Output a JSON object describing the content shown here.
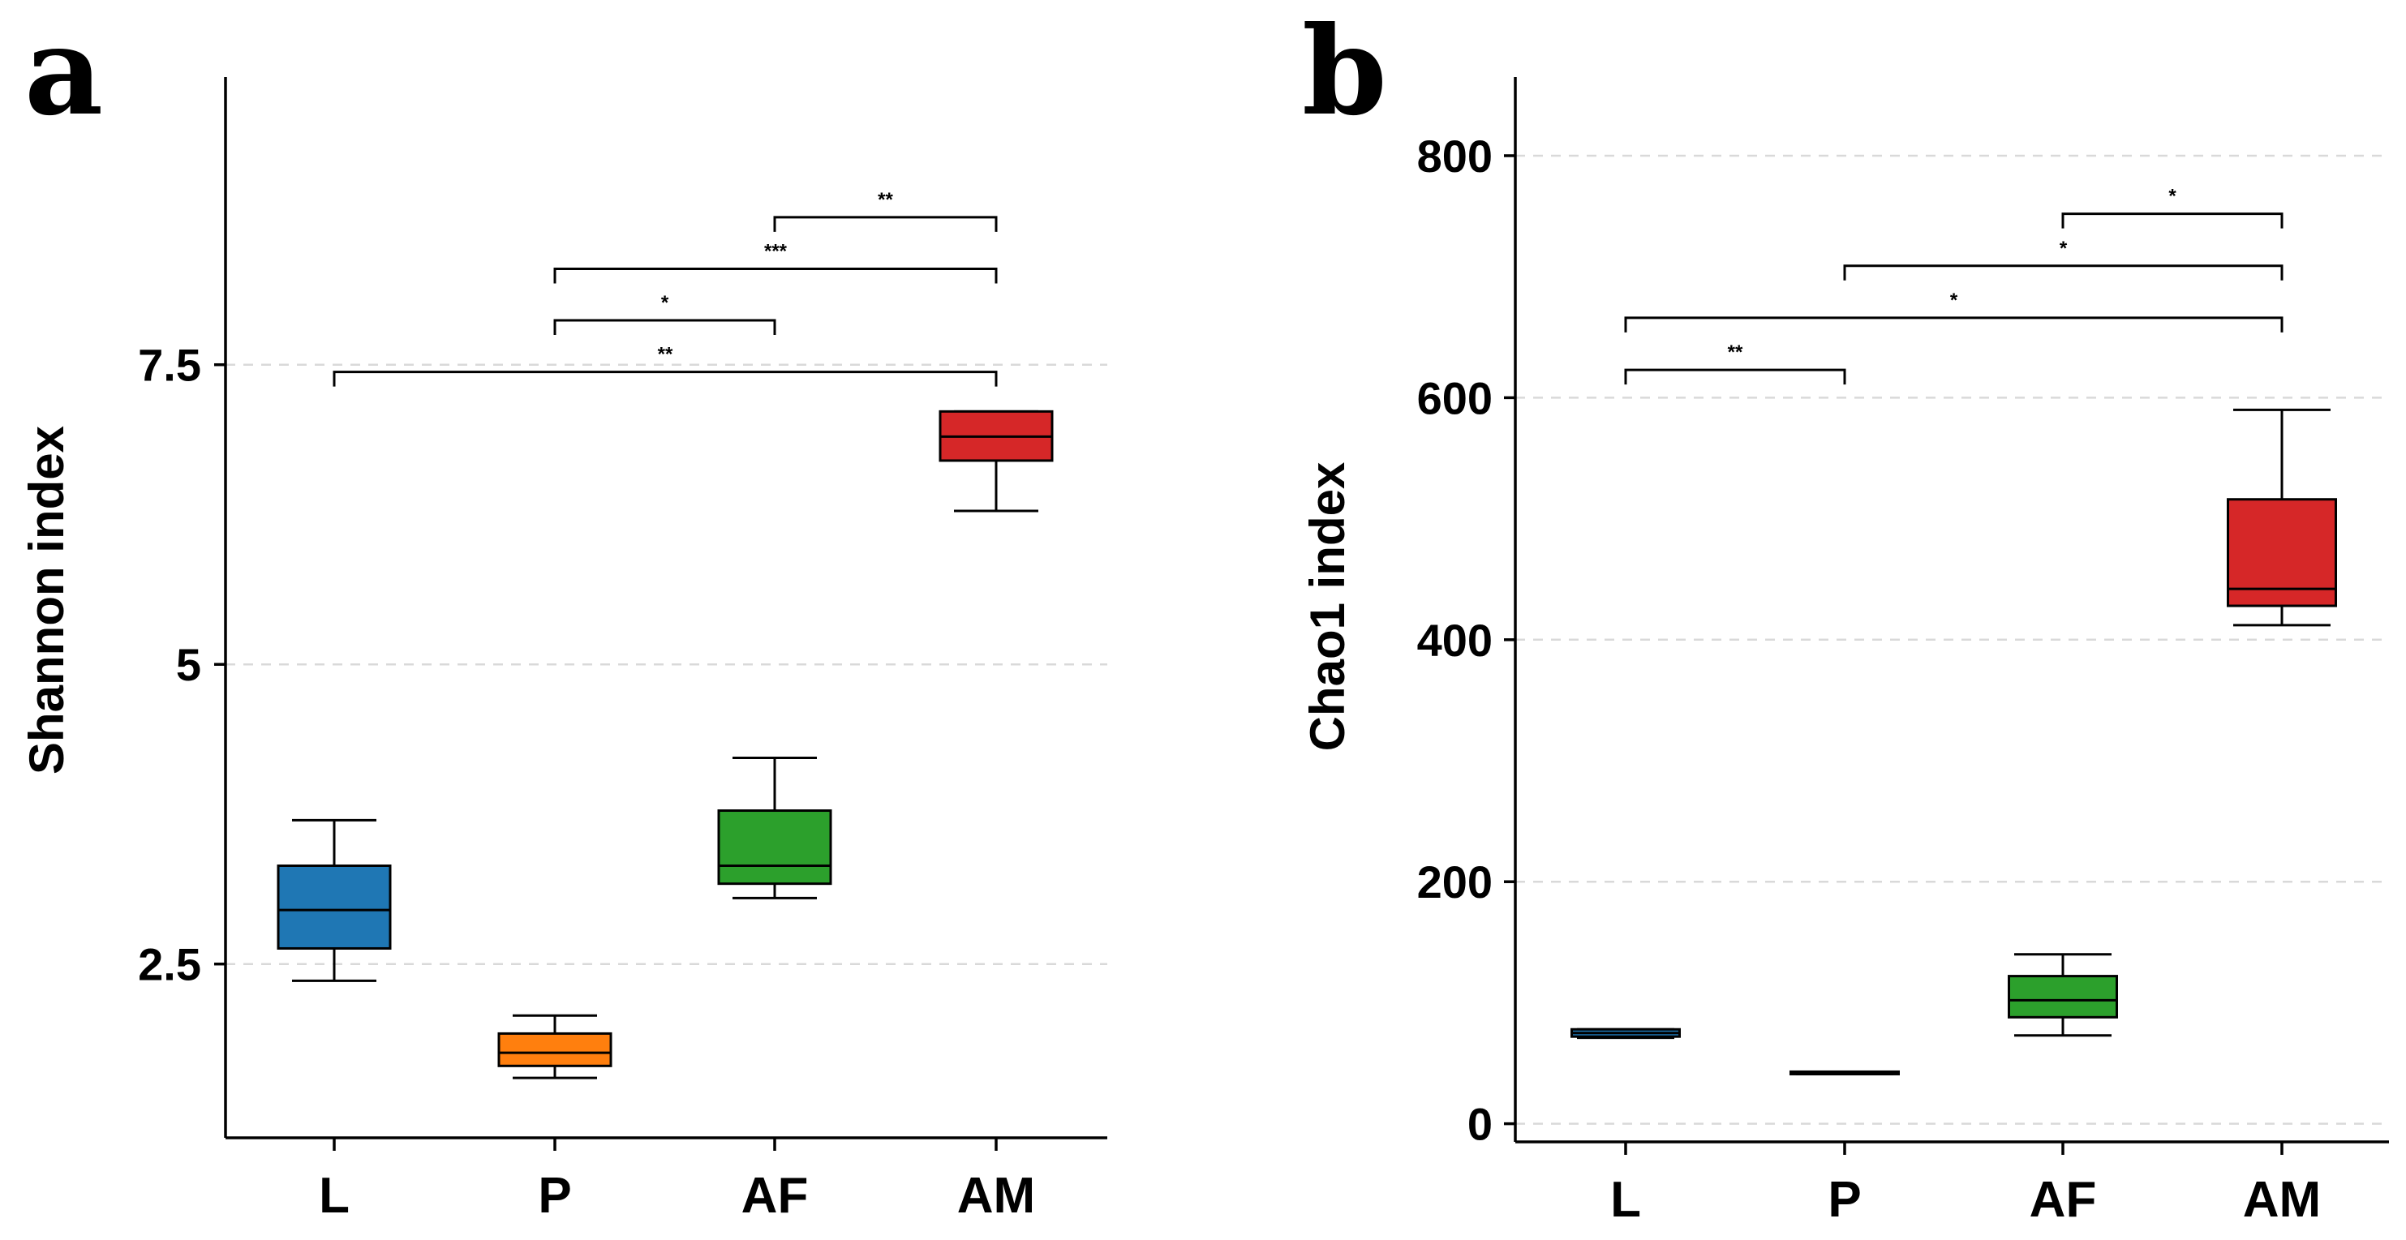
{
  "chart_data": [
    {
      "panel": "a",
      "type": "box",
      "ylabel": "Shannon index",
      "categories": [
        "L",
        "P",
        "AF",
        "AM"
      ],
      "yticks": [
        {
          "value": 2.5,
          "label": "2.5"
        },
        {
          "value": 5,
          "label": "5"
        },
        {
          "value": 7.5,
          "label": "7.5"
        }
      ],
      "ylim": [
        1.05,
        9.9
      ],
      "grid": true,
      "colors": [
        "#1f77b4",
        "#ff7f0e",
        "#2ca02c",
        "#d62728"
      ],
      "boxes": [
        {
          "category": "L",
          "whisker_low": 2.36,
          "q1": 2.63,
          "median": 2.95,
          "q3": 3.32,
          "whisker_high": 3.7,
          "color": "#1f77b4"
        },
        {
          "category": "P",
          "whisker_low": 1.55,
          "q1": 1.65,
          "median": 1.76,
          "q3": 1.92,
          "whisker_high": 2.07,
          "color": "#ff7f0e"
        },
        {
          "category": "AF",
          "whisker_low": 3.05,
          "q1": 3.17,
          "median": 3.32,
          "q3": 3.78,
          "whisker_high": 4.22,
          "color": "#2ca02c"
        },
        {
          "category": "AM",
          "whisker_low": 6.28,
          "q1": 6.7,
          "median": 6.9,
          "q3": 7.11,
          "whisker_high": 7.11,
          "color": "#d62728"
        }
      ],
      "significance": [
        {
          "from": "L",
          "to": "AM",
          "y": 7.44,
          "label": "**"
        },
        {
          "from": "P",
          "to": "AF",
          "y": 7.87,
          "label": "*"
        },
        {
          "from": "P",
          "to": "AM",
          "y": 8.3,
          "label": "***"
        },
        {
          "from": "AF",
          "to": "AM",
          "y": 8.73,
          "label": "**"
        }
      ]
    },
    {
      "panel": "b",
      "type": "box",
      "ylabel": "Chao1 index",
      "categories": [
        "L",
        "P",
        "AF",
        "AM"
      ],
      "yticks": [
        {
          "value": 0,
          "label": "0"
        },
        {
          "value": 200,
          "label": "200"
        },
        {
          "value": 400,
          "label": "400"
        },
        {
          "value": 600,
          "label": "600"
        },
        {
          "value": 800,
          "label": "800"
        }
      ],
      "ylim": [
        -15,
        865
      ],
      "grid": true,
      "colors": [
        "#1f77b4",
        "#ff7f0e",
        "#2ca02c",
        "#d62728"
      ],
      "boxes": [
        {
          "category": "L",
          "whisker_low": 71,
          "q1": 72,
          "median": 75,
          "q3": 78,
          "whisker_high": 78,
          "color": "#1f77b4"
        },
        {
          "category": "P",
          "whisker_low": 41,
          "q1": 41,
          "median": 42,
          "q3": 43,
          "whisker_high": 43,
          "color": "#ff7f0e"
        },
        {
          "category": "AF",
          "whisker_low": 73,
          "q1": 88,
          "median": 102,
          "q3": 122,
          "whisker_high": 140,
          "color": "#2ca02c"
        },
        {
          "category": "AM",
          "whisker_low": 412,
          "q1": 428,
          "median": 442,
          "q3": 516,
          "whisker_high": 590,
          "color": "#d62728"
        }
      ],
      "significance": [
        {
          "from": "L",
          "to": "P",
          "y": 623,
          "label": "**"
        },
        {
          "from": "L",
          "to": "AM",
          "y": 666,
          "label": "*"
        },
        {
          "from": "P",
          "to": "AM",
          "y": 709,
          "label": "*"
        },
        {
          "from": "AF",
          "to": "AM",
          "y": 752,
          "label": "*"
        }
      ]
    }
  ]
}
